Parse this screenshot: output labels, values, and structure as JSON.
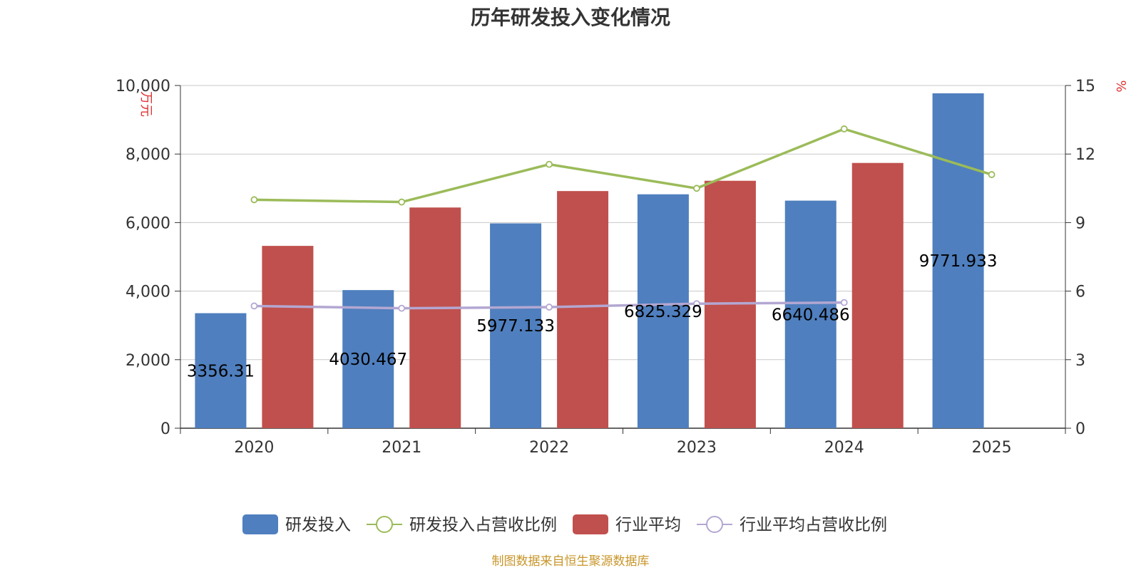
{
  "chart_data": {
    "type": "bar",
    "title": "历年研发投入变化情况",
    "categories": [
      "2020",
      "2021",
      "2022",
      "2023",
      "2024",
      "2025"
    ],
    "y_left": {
      "unit": "万元",
      "range": [
        0,
        10000
      ],
      "ticks": [
        "0",
        "2,000",
        "4,000",
        "6,000",
        "8,000",
        "10,000"
      ]
    },
    "y_right": {
      "unit": "%",
      "range": [
        0,
        15
      ],
      "ticks": [
        "0",
        "3",
        "6",
        "9",
        "12",
        "15"
      ]
    },
    "grid": true,
    "legend_position": "bottom",
    "series": [
      {
        "name": "研发投入",
        "type": "bar",
        "axis": "left",
        "color": "#4f7fbe",
        "values": [
          3356.31,
          4030.467,
          5977.133,
          6825.329,
          6640.486,
          9771.933
        ],
        "labels": [
          "3356.31",
          "4030.467",
          "5977.133",
          "6825.329",
          "6640.486",
          "9771.933"
        ]
      },
      {
        "name": "研发投入占营收比例",
        "type": "line",
        "axis": "right",
        "color": "#9bbb59",
        "values": [
          10.0,
          9.9,
          11.55,
          10.5,
          13.1,
          11.1
        ]
      },
      {
        "name": "行业平均",
        "type": "bar",
        "axis": "left",
        "color": "#c0504d",
        "values": [
          5320,
          6440,
          6920,
          7220,
          7740,
          null
        ]
      },
      {
        "name": "行业平均占营收比例",
        "type": "line",
        "axis": "right",
        "color": "#b3a7d2",
        "values": [
          5.35,
          5.25,
          5.3,
          5.45,
          5.5,
          null
        ]
      }
    ]
  },
  "source_note": "制图数据来自恒生聚源数据库"
}
